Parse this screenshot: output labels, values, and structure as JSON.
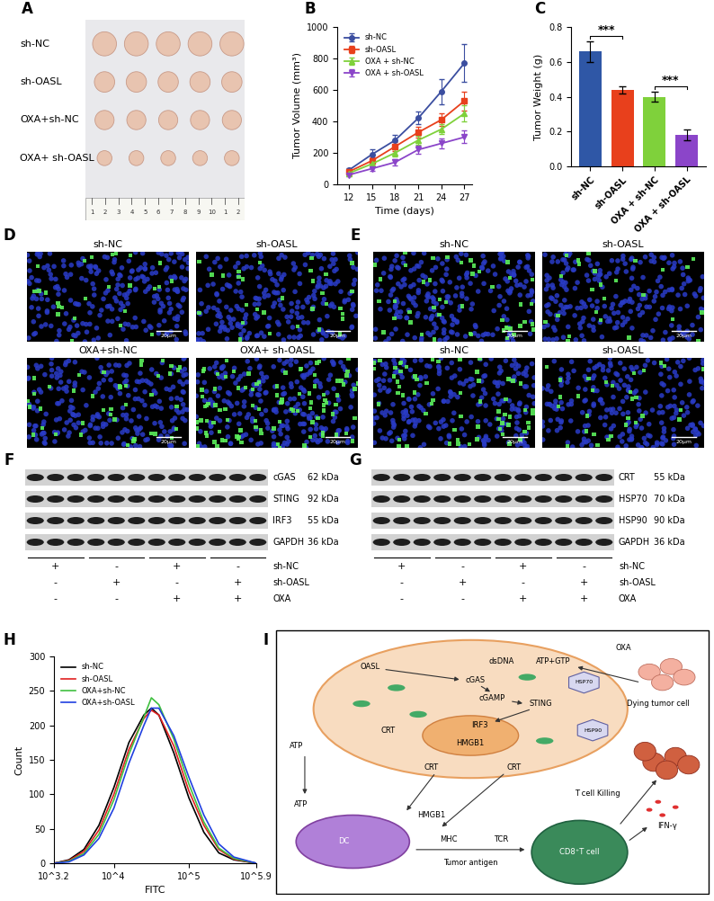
{
  "photo": {
    "panel": "A",
    "rows": [
      "sh-NC",
      "sh-OASL",
      "OXA+sh-NC",
      "OXA+ sh-OASL"
    ],
    "tumors_per_row": 5,
    "ruler": [
      "1",
      "2",
      "3",
      "4",
      "5",
      "6",
      "7",
      "8",
      "9",
      "10",
      "1",
      "2"
    ]
  },
  "chart_data": [
    {
      "panel": "B",
      "type": "line",
      "x": [
        12,
        15,
        18,
        21,
        24,
        27
      ],
      "xlabel": "Time (days)",
      "ylabel": "Tumor Volume (mm³)",
      "xlim": [
        10.5,
        28
      ],
      "xticks": [
        12,
        15,
        18,
        21,
        24,
        27
      ],
      "ylim": [
        0,
        1000
      ],
      "yticks": [
        0,
        200,
        400,
        600,
        800,
        1000
      ],
      "legend": "upper left",
      "series": [
        {
          "name": "sh-NC",
          "color": "#3b4ea0",
          "marker": "circle",
          "values": [
            90,
            190,
            280,
            420,
            590,
            770
          ],
          "errors": [
            15,
            30,
            35,
            40,
            80,
            120
          ]
        },
        {
          "name": "sh-OASL",
          "color": "#e8401c",
          "marker": "square",
          "values": [
            80,
            150,
            240,
            330,
            410,
            530
          ],
          "errors": [
            10,
            20,
            30,
            35,
            40,
            60
          ]
        },
        {
          "name": "OXA + sh-NC",
          "color": "#7fd13b",
          "marker": "triangle_up",
          "values": [
            70,
            130,
            200,
            280,
            350,
            450
          ],
          "errors": [
            10,
            15,
            25,
            30,
            30,
            50
          ]
        },
        {
          "name": "OXA + sh-OASL",
          "color": "#8b45c9",
          "marker": "triangle_down",
          "values": [
            60,
            100,
            140,
            220,
            260,
            300
          ],
          "errors": [
            8,
            15,
            20,
            25,
            30,
            40
          ]
        }
      ]
    },
    {
      "panel": "C",
      "type": "bar",
      "categories": [
        "sh-NC",
        "sh-OASL",
        "OXA + sh-NC",
        "OXA + sh-OASL"
      ],
      "values": [
        0.66,
        0.44,
        0.4,
        0.18
      ],
      "errors": [
        0.06,
        0.02,
        0.03,
        0.03
      ],
      "colors": [
        "#2f57a6",
        "#e8401c",
        "#7fd13b",
        "#8b45c9"
      ],
      "ylabel": "Tumor Weight (g)",
      "ylim": [
        0,
        0.8
      ],
      "yticks": [
        0.0,
        0.2,
        0.4,
        0.6,
        0.8
      ],
      "annotations": [
        {
          "text": "***",
          "between": [
            0,
            1
          ]
        },
        {
          "text": "***",
          "between": [
            2,
            3
          ]
        }
      ]
    },
    {
      "panel": "H",
      "type": "line",
      "log": "x",
      "x": [
        1585,
        2512,
        3981,
        6310,
        10000,
        15849,
        25119,
        31623,
        39811,
        63096,
        100000,
        158489,
        251189,
        398107,
        794328
      ],
      "xlabel": "FITC",
      "ylabel": "Count",
      "xlim": [
        1585,
        794328
      ],
      "xticks": [
        {
          "value": 1585,
          "label": "10^3.2"
        },
        {
          "value": 10000,
          "label": "10^4"
        },
        {
          "value": 100000,
          "label": "10^5"
        },
        {
          "value": 794328,
          "label": "10^5.9"
        }
      ],
      "ylim": [
        0,
        300
      ],
      "yticks": [
        0,
        50,
        100,
        150,
        200,
        250,
        300
      ],
      "legend": "upper left",
      "series": [
        {
          "name": "sh-NC",
          "color": "#000000",
          "values": [
            0,
            5,
            20,
            55,
            110,
            175,
            215,
            225,
            215,
            160,
            95,
            45,
            15,
            5,
            0
          ]
        },
        {
          "name": "sh-OASL",
          "color": "#e02020",
          "values": [
            0,
            4,
            17,
            48,
            100,
            165,
            210,
            222,
            215,
            170,
            105,
            55,
            20,
            6,
            0
          ]
        },
        {
          "name": "OXA+sh-NC",
          "color": "#40c040",
          "values": [
            0,
            3,
            14,
            42,
            92,
            158,
            212,
            240,
            230,
            180,
            115,
            60,
            22,
            7,
            0
          ]
        },
        {
          "name": "OXA+sh-OASL",
          "color": "#2040e0",
          "values": [
            0,
            2,
            12,
            36,
            80,
            145,
            200,
            225,
            225,
            185,
            125,
            70,
            28,
            9,
            0
          ]
        }
      ]
    }
  ],
  "fluorescence": [
    {
      "panel": "D",
      "images": [
        "sh-NC",
        "sh-OASL",
        "OXA+sh-NC",
        "OXA+ sh-OASL"
      ],
      "scale_bar": "20μm"
    },
    {
      "panel": "E",
      "images": [
        "sh-NC",
        "sh-OASL",
        "sh-NC",
        "sh-OASL"
      ],
      "scale_bar": "20μm"
    }
  ],
  "blots": [
    {
      "panel": "F",
      "proteins": [
        {
          "name": "cGAS",
          "size": "62 kDa"
        },
        {
          "name": "STING",
          "size": "92 kDa"
        },
        {
          "name": "IRF3",
          "size": "55 kDa"
        },
        {
          "name": "GAPDH",
          "size": "36 kDa"
        }
      ],
      "lanes_per_group": 3,
      "conditions": [
        {
          "name": "sh-NC",
          "signs": [
            "+",
            "-",
            "+",
            "-"
          ]
        },
        {
          "name": "sh-OASL",
          "signs": [
            "-",
            "+",
            "-",
            "+"
          ]
        },
        {
          "name": "OXA",
          "signs": [
            "-",
            "-",
            "+",
            "+"
          ]
        }
      ]
    },
    {
      "panel": "G",
      "proteins": [
        {
          "name": "CRT",
          "size": "55 kDa"
        },
        {
          "name": "HSP70",
          "size": "70 kDa"
        },
        {
          "name": "HSP90",
          "size": "90 kDa"
        },
        {
          "name": "GAPDH",
          "size": "36 kDa"
        }
      ],
      "lanes_per_group": 3,
      "conditions": [
        {
          "name": "sh-NC",
          "signs": [
            "+",
            "-",
            "+",
            "-"
          ]
        },
        {
          "name": "sh-OASL",
          "signs": [
            "-",
            "+",
            "-",
            "+"
          ]
        },
        {
          "name": "OXA",
          "signs": [
            "-",
            "-",
            "+",
            "+"
          ]
        }
      ]
    }
  ],
  "diagram": {
    "panel": "I",
    "labels": [
      "OASL",
      "dsDNA",
      "ATP+GTP",
      "cGAS",
      "cGAMP",
      "STING",
      "IRF3",
      "HMGB1",
      "CRT",
      "CRT",
      "CRT",
      "ATP",
      "ATP",
      "HSP70",
      "HSP90",
      "OXA",
      "Dying tumor cell",
      "DC",
      "MHC",
      "TCR",
      "Tumor antigen",
      "T cell Killing",
      "IFN-γ",
      "CD8⁺T cell",
      "HMGB1"
    ]
  }
}
